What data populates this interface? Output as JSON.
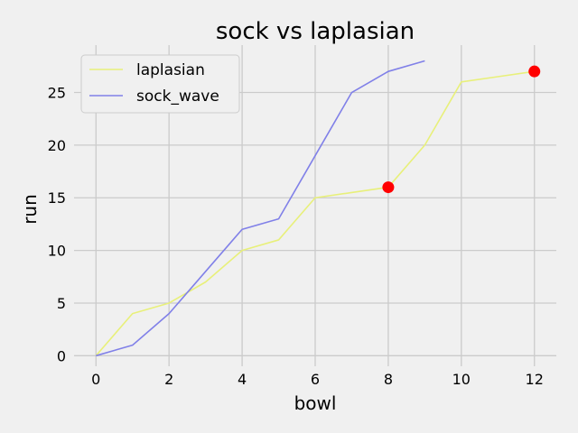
{
  "chart_data": {
    "type": "line",
    "title": "sock vs laplasian",
    "xlabel": "bowl",
    "ylabel": "run",
    "xlim": [
      -0.6,
      12.6
    ],
    "ylim": [
      -1,
      29.5
    ],
    "xticks": [
      0,
      2,
      4,
      6,
      8,
      10,
      12
    ],
    "yticks": [
      0,
      5,
      10,
      15,
      20,
      25
    ],
    "grid": true,
    "legend_position": "top-left",
    "series": [
      {
        "name": "laplasian",
        "color": "#e8f07a",
        "x": [
          0,
          1,
          2,
          3,
          4,
          5,
          6,
          7,
          8,
          9,
          10,
          11,
          12
        ],
        "y": [
          0,
          4,
          5,
          7,
          10,
          11,
          15,
          15.5,
          16,
          20,
          26,
          26.5,
          27
        ]
      },
      {
        "name": "sock_wave",
        "color": "#8080e8",
        "x": [
          0,
          1,
          2,
          3,
          4,
          5,
          6,
          7,
          8,
          9
        ],
        "y": [
          0,
          1,
          4,
          8,
          12,
          13,
          19,
          25,
          27,
          28
        ]
      }
    ],
    "highlight_points": {
      "color": "#ff0000",
      "points": [
        {
          "x": 8,
          "y": 16
        },
        {
          "x": 12,
          "y": 27
        }
      ]
    }
  }
}
